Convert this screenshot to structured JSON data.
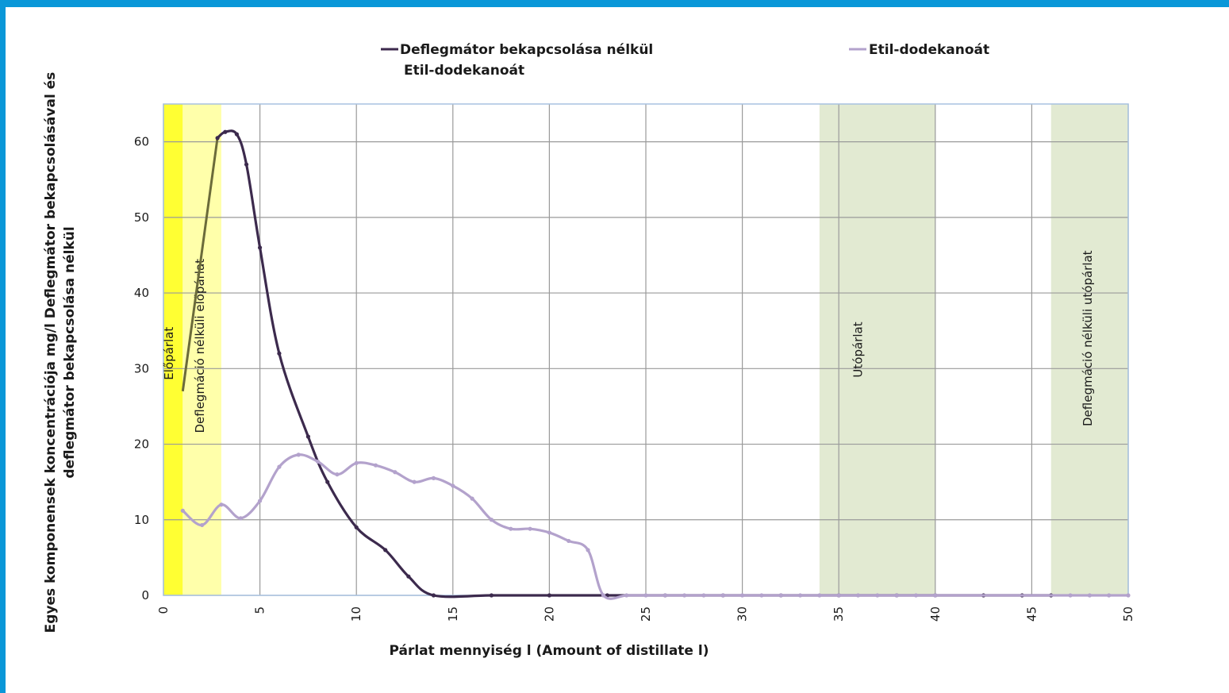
{
  "chart_data": {
    "type": "line",
    "title": "",
    "xlabel": "Párlat mennyiség l (Amount of distillate  l)",
    "ylabel_line1": "Egyes komponensek koncentrációja mg/l Deflegmátor bekapcsolásával és",
    "ylabel_line2": "deflegmátor bekapcsolása nélkül",
    "xlim": [
      0,
      50
    ],
    "ylim": [
      0,
      65
    ],
    "x_ticks": [
      0,
      5,
      10,
      15,
      20,
      25,
      30,
      35,
      40,
      45,
      50
    ],
    "y_ticks": [
      0,
      10,
      20,
      30,
      40,
      50,
      60
    ],
    "grid": true,
    "legend_position": "top",
    "colors": {
      "dark_series": "#3c2a4d",
      "light_series": "#b3a2cc",
      "elopar_band": "#ffff33",
      "deflegmacio_elopar_band": "#ffffaa",
      "utopar_band": "#e2ead2",
      "grid": "#9a9a9a",
      "plot_border": "#a8c2e0"
    },
    "series": [
      {
        "name": "Deflegmátor bekapcsolása  nélkül",
        "name_line2": "Etil-dodekanoát",
        "color": "#3c2a4d",
        "points": [
          [
            2.8,
            60.5
          ],
          [
            3.2,
            61.3
          ],
          [
            3.8,
            61.0
          ],
          [
            4.3,
            57.0
          ],
          [
            5.0,
            46.0
          ],
          [
            6.0,
            32.0
          ],
          [
            7.5,
            21.0
          ],
          [
            8.5,
            15.0
          ],
          [
            10.0,
            9.0
          ],
          [
            11.5,
            6.0
          ],
          [
            12.7,
            2.5
          ],
          [
            14.0,
            0.0
          ],
          [
            17.0,
            0.0
          ],
          [
            20.0,
            0.0
          ],
          [
            23.0,
            0.0
          ],
          [
            26.0,
            0.0
          ],
          [
            29.0,
            0.0
          ],
          [
            32.0,
            0.0
          ],
          [
            35.0,
            0.0
          ],
          [
            38.0,
            0.0
          ],
          [
            40.0,
            0.0
          ],
          [
            42.5,
            0.0
          ],
          [
            44.5,
            0.0
          ],
          [
            46.0,
            0.0
          ]
        ]
      },
      {
        "name": "Etil-dodekanoát",
        "color": "#b3a2cc",
        "points": [
          [
            1.0,
            11.2
          ],
          [
            2.0,
            9.3
          ],
          [
            3.0,
            12.0
          ],
          [
            4.0,
            10.2
          ],
          [
            5.0,
            12.5
          ],
          [
            6.0,
            17.0
          ],
          [
            7.0,
            18.6
          ],
          [
            8.0,
            17.7
          ],
          [
            9.0,
            16.0
          ],
          [
            10.0,
            17.5
          ],
          [
            11.0,
            17.2
          ],
          [
            12.0,
            16.3
          ],
          [
            13.0,
            15.0
          ],
          [
            14.0,
            15.5
          ],
          [
            15.0,
            14.5
          ],
          [
            16.0,
            12.8
          ],
          [
            17.0,
            10.0
          ],
          [
            18.0,
            8.8
          ],
          [
            19.0,
            8.8
          ],
          [
            20.0,
            8.3
          ],
          [
            21.0,
            7.2
          ],
          [
            22.0,
            6.0
          ],
          [
            22.8,
            0.0
          ],
          [
            24.0,
            0.0
          ],
          [
            25.0,
            0.0
          ],
          [
            26.0,
            0.0
          ],
          [
            27.0,
            0.0
          ],
          [
            28.0,
            0.0
          ],
          [
            29.0,
            0.0
          ],
          [
            30.0,
            0.0
          ],
          [
            31.0,
            0.0
          ],
          [
            32.0,
            0.0
          ],
          [
            33.0,
            0.0
          ],
          [
            34.0,
            0.0
          ],
          [
            35.0,
            0.0
          ],
          [
            36.0,
            0.0
          ],
          [
            37.0,
            0.0
          ],
          [
            38.0,
            0.0
          ],
          [
            39.0,
            0.0
          ],
          [
            40.0,
            0.0
          ],
          [
            47.0,
            0.0
          ],
          [
            48.0,
            0.0
          ],
          [
            49.0,
            0.0
          ],
          [
            50.0,
            0.0
          ]
        ]
      }
    ],
    "connector": {
      "color": "#6b6b3a",
      "points": [
        [
          1.0,
          27.0
        ],
        [
          2.8,
          60.5
        ]
      ]
    },
    "regions": [
      {
        "id": "elopar",
        "x0": 0,
        "x1": 1,
        "label": "Előpárlat",
        "color": "#ffff33",
        "label_x": 0.5,
        "label_y": 32
      },
      {
        "id": "deflegmacio-elopar",
        "x0": 1,
        "x1": 3,
        "label": "Deflegmáció nélküli előpárlat",
        "color": "#ffffaa",
        "label_x": 2.1,
        "label_y": 33
      },
      {
        "id": "utopar",
        "x0": 34,
        "x1": 40,
        "label": "Utópárlat",
        "color": "#e2ead2",
        "label_x": 36.2,
        "label_y": 32.5
      },
      {
        "id": "deflegmacio-utopar",
        "x0": 46,
        "x1": 50,
        "label": "Deflegmáció nélküli utópárlat",
        "color": "#e2ead2",
        "label_x": 48.1,
        "label_y": 34
      }
    ]
  }
}
